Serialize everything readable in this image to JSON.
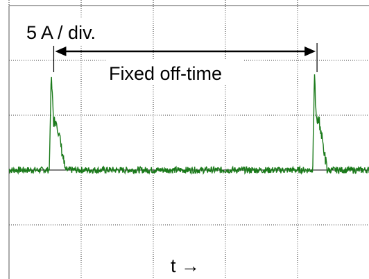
{
  "chart_data": {
    "type": "line",
    "title": "",
    "ylabel": "5 A / div.",
    "xlabel": "t →",
    "annotation": "Fixed off-time",
    "grid": true,
    "x_divisions": 5,
    "y_divisions": 5,
    "ylim": [
      -2.5,
      2.5
    ],
    "xlim": [
      0,
      5
    ],
    "baseline_level": 0.0,
    "trace_color": "#1a7a1a",
    "pulses": [
      {
        "x_start": 0.56,
        "peak": 1.8,
        "plateau": 0.9,
        "x_end": 0.78
      },
      {
        "x_start": 4.21,
        "peak": 1.7,
        "plateau": 0.9,
        "x_end": 4.41
      }
    ],
    "off_time_interval": [
      0.62,
      4.27
    ]
  }
}
